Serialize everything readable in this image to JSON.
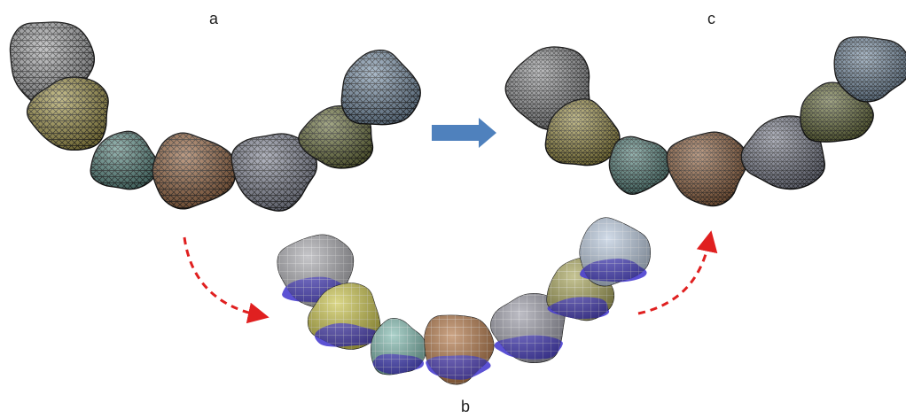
{
  "labels": {
    "a": "a",
    "b": "b",
    "c": "c"
  },
  "panels": {
    "a": {
      "teeth": [
        {
          "color": "#a9aaac"
        },
        {
          "color": "#a69a4e"
        },
        {
          "color": "#5f8f88"
        },
        {
          "color": "#9c6a45"
        },
        {
          "color": "#8a8e9e"
        },
        {
          "color": "#747a45"
        },
        {
          "color": "#7f97ae"
        }
      ]
    },
    "b": {
      "teeth": [
        {
          "color": "#a8a8ad",
          "band": "#4a3fcf"
        },
        {
          "color": "#c8c24a",
          "band": "#4a3fcf"
        },
        {
          "color": "#7fb9ae",
          "band": "#4a3fcf"
        },
        {
          "color": "#b07444",
          "band": "#4a3fcf"
        },
        {
          "color": "#9a9aa6",
          "band": "#4a3fcf"
        },
        {
          "color": "#a7a45a",
          "band": "#4a3fcf"
        },
        {
          "color": "#b8c8dc",
          "band": "#4a3fcf"
        }
      ]
    },
    "c": {
      "teeth": [
        {
          "color": "#9e9fa1"
        },
        {
          "color": "#a69a4e"
        },
        {
          "color": "#5f8f88"
        },
        {
          "color": "#9c6a45"
        },
        {
          "color": "#8a8e9e"
        },
        {
          "color": "#747a45"
        },
        {
          "color": "#7f97ae"
        }
      ]
    }
  },
  "arrows": {
    "main": "#4f81bd",
    "curved": "#e02020"
  }
}
